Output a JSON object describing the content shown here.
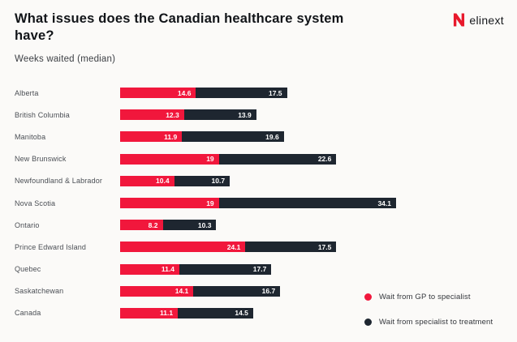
{
  "header": {
    "title": "What issues does the Canadian healthcare system have?",
    "subtitle": "Weeks waited (median)",
    "brand": "elinext"
  },
  "colors": {
    "gp": "#f1173c",
    "treatment": "#1e2630",
    "background": "#fbfaf8",
    "brand_red": "#e8192c"
  },
  "chart_data": {
    "type": "bar",
    "orientation": "horizontal-stacked",
    "title": "What issues does the Canadian healthcare system have?",
    "xlabel": "Weeks waited (median)",
    "grid": false,
    "xmax": 53.1,
    "categories": [
      "Alberta",
      "British Columbia",
      "Manitoba",
      "New Brunswick",
      "Newfoundland & Labrador",
      "Nova Scotia",
      "Ontario",
      "Prince Edward Island",
      "Quebec",
      "Saskatchewan",
      "Canada"
    ],
    "series": [
      {
        "name": "Wait from GP to specialist",
        "color": "#f1173c",
        "values": [
          14.6,
          12.3,
          11.9,
          19,
          10.4,
          19,
          8.2,
          24.1,
          11.4,
          14.1,
          11.1
        ]
      },
      {
        "name": "Wait from specialist to treatment",
        "color": "#1e2630",
        "values": [
          17.5,
          13.9,
          19.6,
          22.6,
          10.7,
          34.1,
          10.3,
          17.5,
          17.7,
          16.7,
          14.5
        ]
      }
    ],
    "legend_position": "bottom-right"
  },
  "legend": [
    {
      "label": "Wait from GP to specialist",
      "color": "#f1173c"
    },
    {
      "label": "Wait from specialist to treatment",
      "color": "#1e2630"
    }
  ]
}
